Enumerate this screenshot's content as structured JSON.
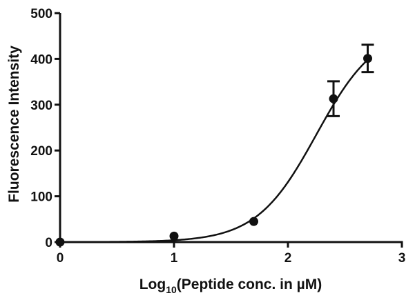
{
  "chart_data": {
    "type": "scatter",
    "title": "",
    "xlabel": "Log10(Peptide conc. in µM)",
    "xlabel_parts": {
      "prefix": "Log",
      "subscript": "10",
      "suffix": "(Peptide conc. in µM)"
    },
    "ylabel": "Fluorescence Intensity",
    "xlim": [
      0,
      3
    ],
    "ylim": [
      0,
      500
    ],
    "x_ticks": [
      0,
      1,
      2,
      3
    ],
    "y_ticks": [
      0,
      100,
      200,
      300,
      400,
      500
    ],
    "x_tick_labels": [
      "0",
      "1",
      "2",
      "3"
    ],
    "y_tick_labels": [
      "0",
      "100",
      "200",
      "300",
      "400",
      "500"
    ],
    "grid": false,
    "legend": "none",
    "series": [
      {
        "points": [
          {
            "x": 0,
            "y": 0
          },
          {
            "x": 1.0,
            "y": 13
          },
          {
            "x": 1.7,
            "y": 45
          },
          {
            "x": 2.4,
            "y": 313,
            "err": 38
          },
          {
            "x": 2.7,
            "y": 401,
            "err": 30
          }
        ],
        "fit": {
          "model": "sigmoid",
          "bottom": 0,
          "top": 470,
          "log_ec50": 2.25,
          "hill_slope": 1.65
        }
      }
    ],
    "colors": {
      "marker": "#111111",
      "line": "#111111",
      "axis": "#111111"
    }
  }
}
